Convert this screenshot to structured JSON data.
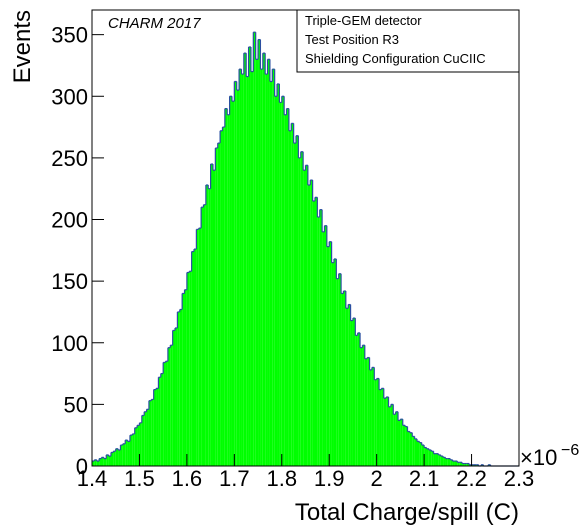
{
  "chart_data": {
    "type": "histogram",
    "x_label": "Total Charge/spill (C)",
    "y_label": "Events",
    "annotation": "CHARM 2017",
    "legend_lines": [
      "Triple-GEM detector",
      "Test Position R3",
      "Shielding Configuration CuCIIC"
    ],
    "x_multiplier": "×10",
    "x_multiplier_exponent": "−6",
    "fill_color": "#00ff00",
    "line_color": "#2a4fa0",
    "xlim": [
      1.4,
      2.3
    ],
    "ylim": [
      0,
      370
    ],
    "xticks": [
      1.4,
      1.5,
      1.6,
      1.7,
      1.8,
      1.9,
      2,
      2.1,
      2.2,
      2.3
    ],
    "yticks": [
      0,
      50,
      100,
      150,
      200,
      250,
      300,
      350
    ],
    "bins": [
      1.4,
      1.405,
      1.41,
      1.415,
      1.42,
      1.425,
      1.43,
      1.435,
      1.44,
      1.445,
      1.45,
      1.455,
      1.46,
      1.465,
      1.47,
      1.475,
      1.48,
      1.485,
      1.49,
      1.495,
      1.5,
      1.505,
      1.51,
      1.515,
      1.52,
      1.525,
      1.53,
      1.535,
      1.54,
      1.545,
      1.55,
      1.555,
      1.56,
      1.565,
      1.57,
      1.575,
      1.58,
      1.585,
      1.59,
      1.595,
      1.6,
      1.605,
      1.61,
      1.615,
      1.62,
      1.625,
      1.63,
      1.635,
      1.64,
      1.645,
      1.65,
      1.655,
      1.66,
      1.665,
      1.67,
      1.675,
      1.68,
      1.685,
      1.69,
      1.695,
      1.7,
      1.705,
      1.71,
      1.715,
      1.72,
      1.725,
      1.73,
      1.735,
      1.74,
      1.745,
      1.75,
      1.755,
      1.76,
      1.765,
      1.77,
      1.775,
      1.78,
      1.785,
      1.79,
      1.795,
      1.8,
      1.805,
      1.81,
      1.815,
      1.82,
      1.825,
      1.83,
      1.835,
      1.84,
      1.845,
      1.85,
      1.855,
      1.86,
      1.865,
      1.87,
      1.875,
      1.88,
      1.885,
      1.89,
      1.895,
      1.9,
      1.905,
      1.91,
      1.915,
      1.92,
      1.925,
      1.93,
      1.935,
      1.94,
      1.945,
      1.95,
      1.955,
      1.96,
      1.965,
      1.97,
      1.975,
      1.98,
      1.985,
      1.99,
      1.995,
      2.0,
      2.005,
      2.01,
      2.015,
      2.02,
      2.025,
      2.03,
      2.035,
      2.04,
      2.045,
      2.05,
      2.055,
      2.06,
      2.065,
      2.07,
      2.075,
      2.08,
      2.085,
      2.09,
      2.095,
      2.1,
      2.105,
      2.11,
      2.115,
      2.12,
      2.125,
      2.13,
      2.135,
      2.14,
      2.145,
      2.15,
      2.155,
      2.16,
      2.165,
      2.17,
      2.175,
      2.18,
      2.185,
      2.19,
      2.195,
      2.2,
      2.205,
      2.21,
      2.215,
      2.22,
      2.225,
      2.23,
      2.235,
      2.24,
      2.245,
      2.25,
      2.255,
      2.26,
      2.265,
      2.27,
      2.275,
      2.28,
      2.285,
      2.29,
      2.295,
      2.3
    ],
    "values": [
      4,
      5,
      4,
      6,
      7,
      6,
      9,
      8,
      11,
      12,
      14,
      13,
      17,
      18,
      21,
      20,
      25,
      26,
      31,
      33,
      35,
      41,
      44,
      46,
      53,
      54,
      62,
      63,
      72,
      75,
      84,
      85,
      96,
      98,
      110,
      112,
      125,
      127,
      140,
      143,
      157,
      158,
      174,
      176,
      192,
      193,
      210,
      212,
      228,
      225,
      245,
      240,
      258,
      262,
      272,
      275,
      290,
      285,
      300,
      296,
      312,
      305,
      322,
      318,
      335,
      316,
      340,
      320,
      352,
      330,
      346,
      322,
      335,
      318,
      330,
      312,
      322,
      300,
      310,
      295,
      300,
      285,
      290,
      272,
      278,
      262,
      268,
      250,
      255,
      240,
      244,
      228,
      232,
      215,
      218,
      202,
      208,
      190,
      195,
      178,
      182,
      165,
      168,
      152,
      156,
      140,
      142,
      128,
      131,
      118,
      120,
      106,
      108,
      96,
      98,
      87,
      88,
      78,
      80,
      70,
      71,
      62,
      63,
      55,
      56,
      48,
      50,
      42,
      44,
      37,
      38,
      33,
      32,
      28,
      27,
      24,
      22,
      20,
      19,
      17,
      15,
      14,
      13,
      12,
      10,
      10,
      9,
      8,
      7,
      6,
      6,
      5,
      4,
      4,
      3,
      3,
      2,
      2,
      2,
      1,
      1,
      1,
      1,
      0,
      1,
      0,
      0,
      1,
      0,
      0,
      0,
      0,
      0,
      0,
      0,
      0,
      0,
      0,
      0,
      0
    ]
  }
}
